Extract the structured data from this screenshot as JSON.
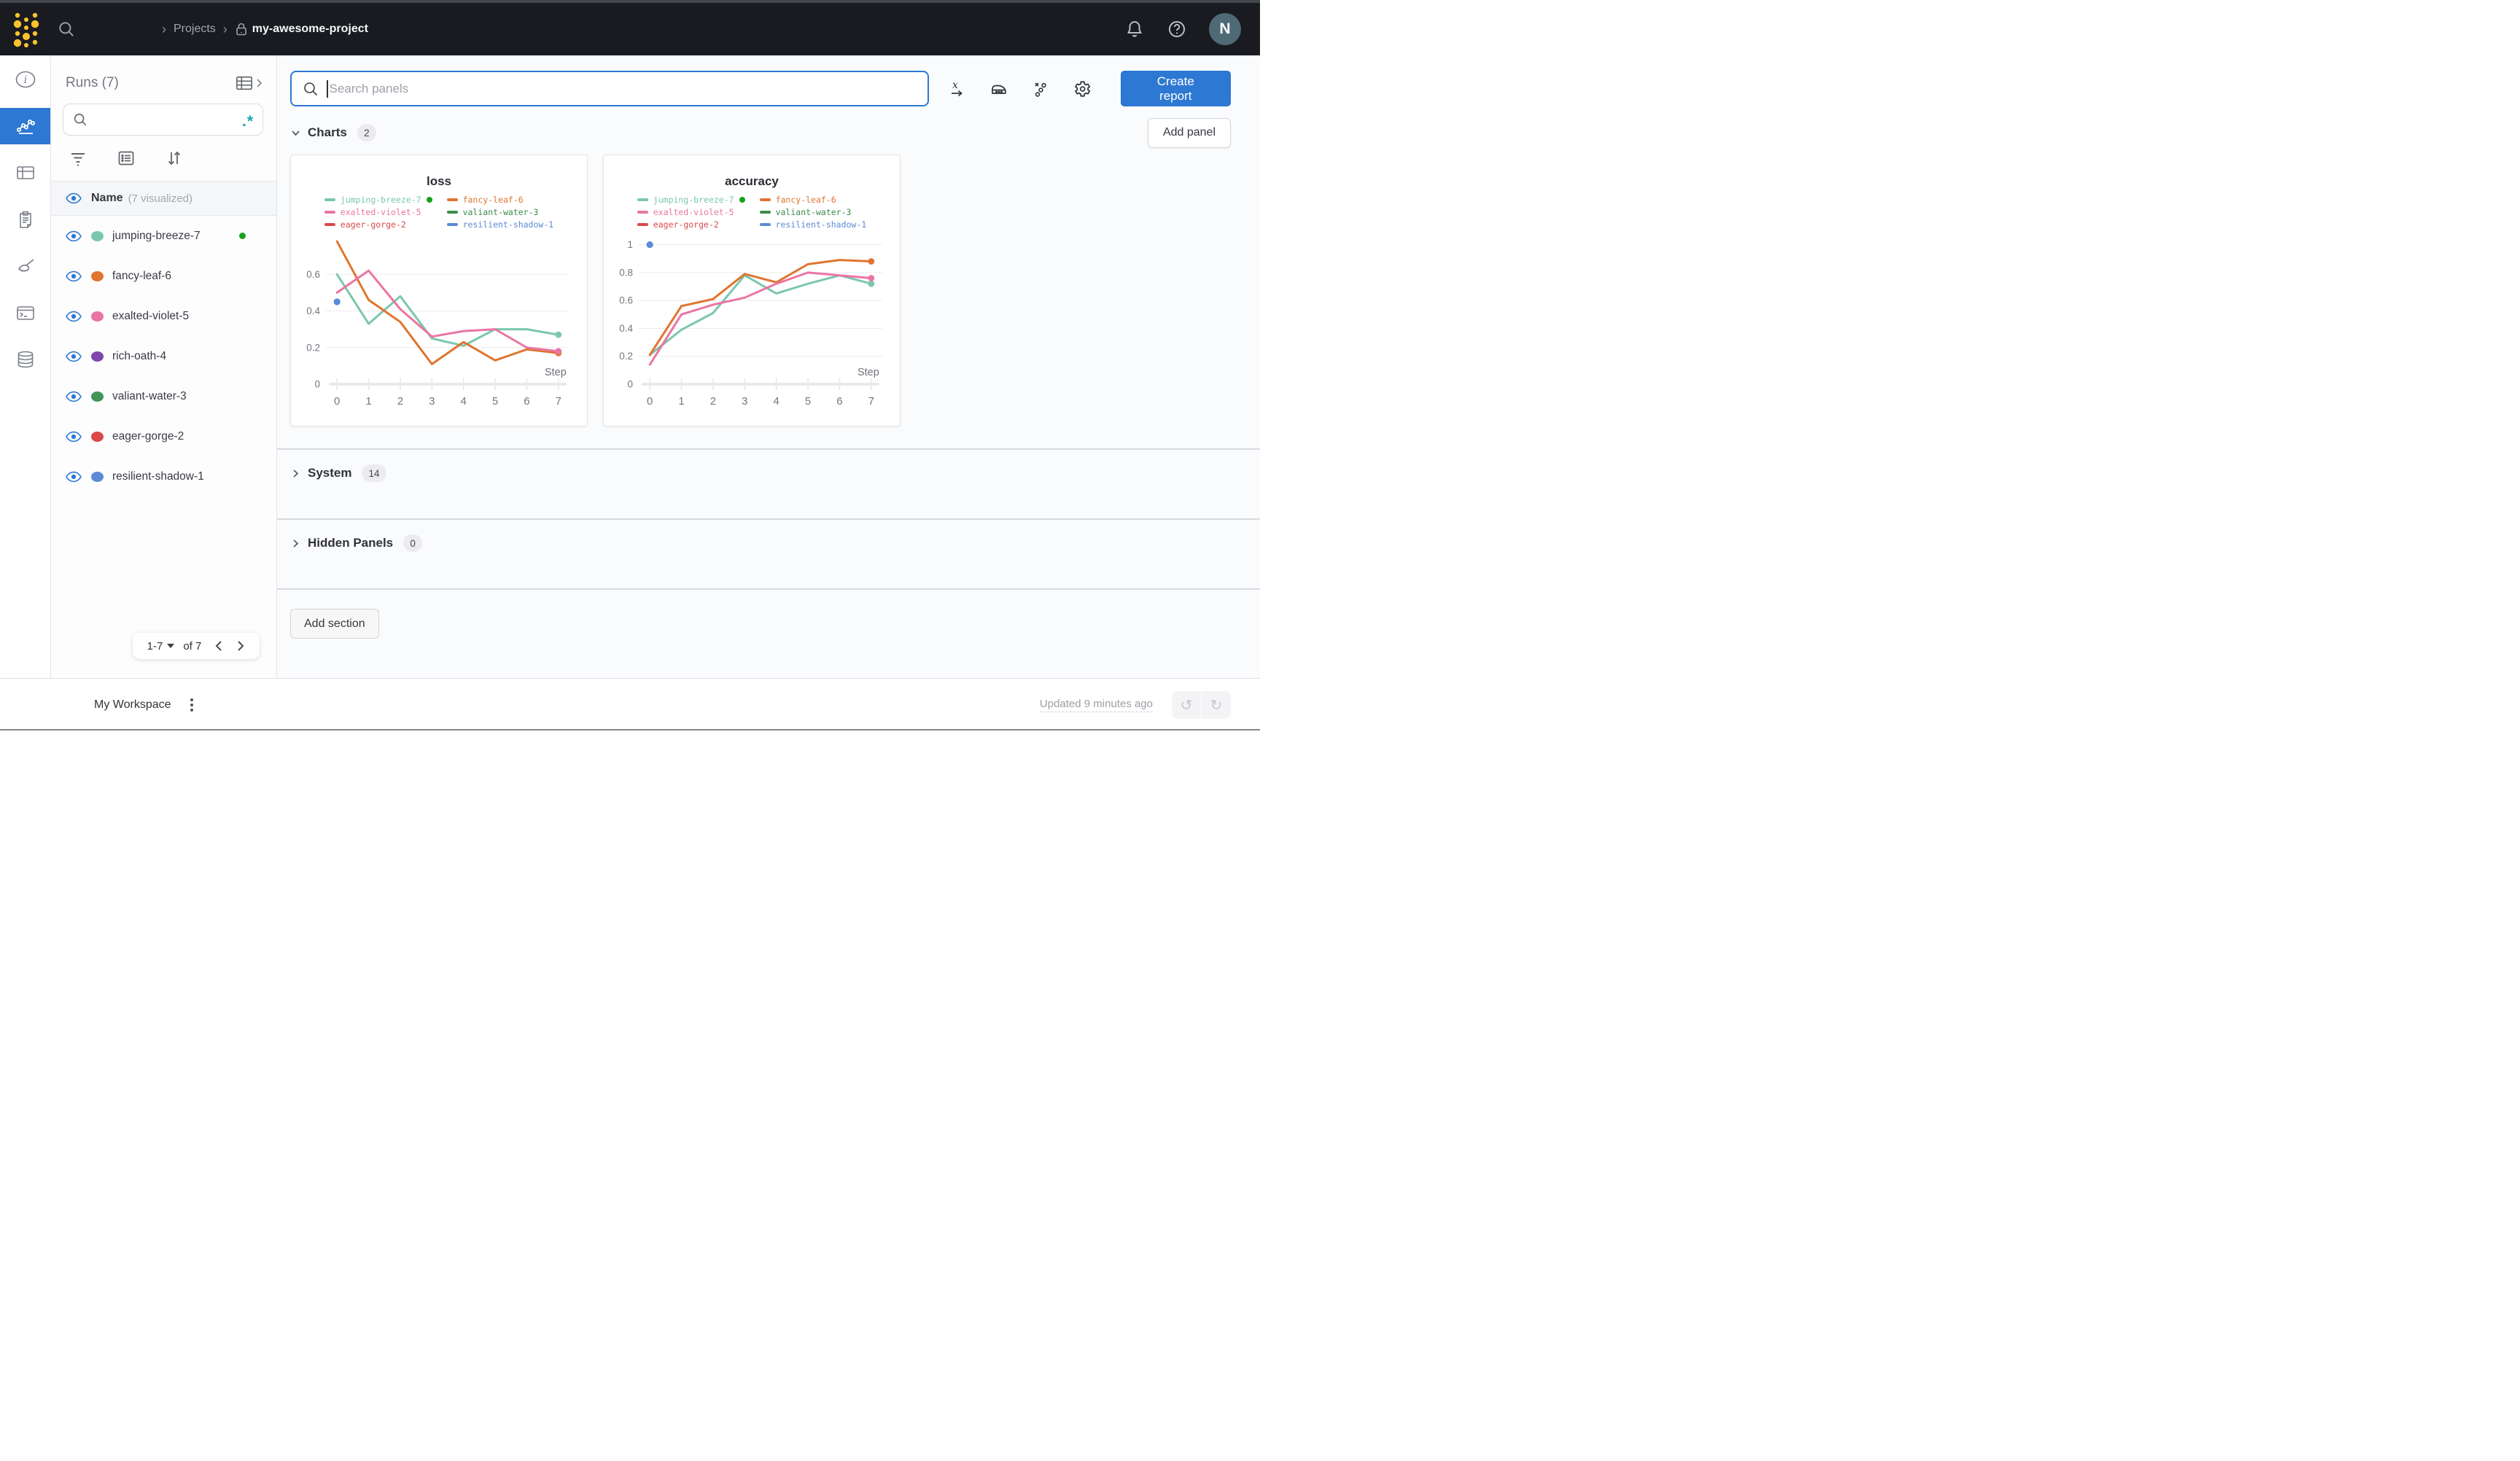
{
  "topbar": {
    "breadcrumb_projects": "Projects",
    "breadcrumb_project": "my-awesome-project",
    "avatar_initial": "N"
  },
  "runs_panel": {
    "title": "Runs (7)",
    "search_value": "",
    "regex_icon": ".*",
    "header_label": "Name",
    "header_meta": "(7 visualized)",
    "runs": [
      {
        "name": "jumping-breeze-7",
        "color": "#7bc7ad",
        "running": true
      },
      {
        "name": "fancy-leaf-6",
        "color": "#e0752f",
        "running": false
      },
      {
        "name": "exalted-violet-5",
        "color": "#ea75a4",
        "running": false
      },
      {
        "name": "rich-oath-4",
        "color": "#8146ad",
        "running": false
      },
      {
        "name": "valiant-water-3",
        "color": "#44945a",
        "running": false
      },
      {
        "name": "eager-gorge-2",
        "color": "#d9494a",
        "running": false
      },
      {
        "name": "resilient-shadow-1",
        "color": "#5b8ad8",
        "running": false
      }
    ],
    "pagination": {
      "range_label": "1-7",
      "of_label": "of 7"
    }
  },
  "main": {
    "panel_search_placeholder": "Search panels",
    "create_report_label": "Create report",
    "add_panel_label": "Add panel",
    "add_section_label": "Add section",
    "sections": [
      {
        "label": "Charts",
        "count": "2"
      },
      {
        "label": "System",
        "count": "14"
      },
      {
        "label": "Hidden Panels",
        "count": "0"
      }
    ]
  },
  "footer": {
    "workspace_label": "My Workspace",
    "updated_label": "Updated 9 minutes ago"
  },
  "colors": {
    "accent_blue": "#2d78d2",
    "status_green": "#18a118",
    "regex_teal": "#13a3b8",
    "logo_yellow": "#fcc32d"
  },
  "chart_data": [
    {
      "type": "line",
      "title": "loss",
      "xlabel": "Step",
      "x": [
        0,
        1,
        2,
        3,
        4,
        5,
        6,
        7
      ],
      "xticks": [
        0,
        1,
        2,
        3,
        4,
        5,
        6,
        7
      ],
      "yticks": [
        0,
        0.2,
        0.4,
        0.6
      ],
      "ylim": [
        0,
        0.8
      ],
      "grid": "horizontal",
      "legend_position": "top",
      "series": [
        {
          "name": "jumping-breeze-7",
          "color": "#7bc7ad",
          "values": [
            0.6,
            0.33,
            0.48,
            0.25,
            0.21,
            0.3,
            0.3,
            0.27
          ],
          "end_dot": true,
          "status_dot": true
        },
        {
          "name": "fancy-leaf-6",
          "color": "#e0752f",
          "values": [
            0.78,
            0.46,
            0.34,
            0.11,
            0.23,
            0.13,
            0.19,
            0.17
          ],
          "end_dot": true
        },
        {
          "name": "exalted-violet-5",
          "color": "#ea75a4",
          "values": [
            0.5,
            0.62,
            0.41,
            0.26,
            0.29,
            0.3,
            0.2,
            0.18
          ],
          "end_dot": true
        },
        {
          "name": "valiant-water-3",
          "color": "#3d8b4b",
          "values": []
        },
        {
          "name": "eager-gorge-2",
          "color": "#d9494a",
          "values": []
        },
        {
          "name": "resilient-shadow-1",
          "color": "#5b8ad8",
          "values": [
            0.45
          ],
          "dot_only": true
        }
      ]
    },
    {
      "type": "line",
      "title": "accuracy",
      "xlabel": "Step",
      "x": [
        0,
        1,
        2,
        3,
        4,
        5,
        6,
        7
      ],
      "xticks": [
        0,
        1,
        2,
        3,
        4,
        5,
        6,
        7
      ],
      "yticks": [
        0,
        0.2,
        0.4,
        0.6,
        0.8,
        1
      ],
      "ylim": [
        0,
        1.05
      ],
      "grid": "horizontal",
      "legend_position": "top",
      "series": [
        {
          "name": "jumping-breeze-7",
          "color": "#7bc7ad",
          "values": [
            0.21,
            0.39,
            0.51,
            0.78,
            0.65,
            0.72,
            0.78,
            0.72
          ],
          "end_dot": true,
          "status_dot": true
        },
        {
          "name": "fancy-leaf-6",
          "color": "#e0752f",
          "values": [
            0.21,
            0.56,
            0.61,
            0.79,
            0.73,
            0.86,
            0.89,
            0.88
          ],
          "end_dot": true
        },
        {
          "name": "exalted-violet-5",
          "color": "#ea75a4",
          "values": [
            0.14,
            0.5,
            0.57,
            0.62,
            0.72,
            0.8,
            0.78,
            0.76
          ],
          "end_dot": true
        },
        {
          "name": "valiant-water-3",
          "color": "#3d8b4b",
          "values": []
        },
        {
          "name": "eager-gorge-2",
          "color": "#d9494a",
          "values": []
        },
        {
          "name": "resilient-shadow-1",
          "color": "#5b8ad8",
          "values": [
            1.0
          ],
          "dot_only": true
        }
      ]
    }
  ]
}
